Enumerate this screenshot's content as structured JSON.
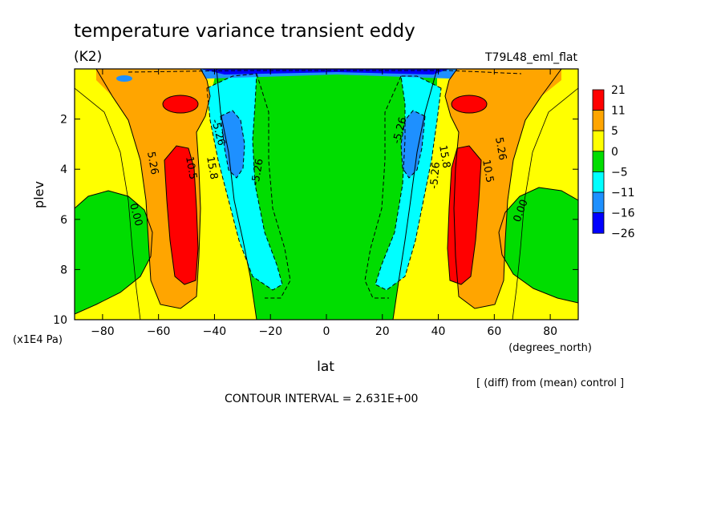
{
  "chart_data": {
    "type": "heatmap",
    "title": "temperature variance transient eddy",
    "units": "(K2)",
    "run_label": "T79L48_eml_flat",
    "xlabel": "lat",
    "x_units": "(degrees_north)",
    "ylabel": "plev",
    "y_units": "(x1E4 Pa)",
    "xlim": [
      -90,
      90
    ],
    "ylim": [
      10,
      0
    ],
    "x_ticks": [
      -80,
      -60,
      -40,
      -20,
      0,
      20,
      40,
      60,
      80
    ],
    "y_ticks": [
      2,
      4,
      6,
      8,
      10
    ],
    "note": "[ (diff) from (mean) control ]",
    "contour_interval": "CONTOUR INTERVAL = 2.631E+00",
    "colorbar": {
      "levels": [
        "21",
        "11",
        "5",
        "0",
        "-5",
        "-11",
        "-16",
        "-26"
      ],
      "colors": [
        "#ff0000",
        "#ffa500",
        "#ffff00",
        "#00dd00",
        "#00ffff",
        "#1e90ff",
        "#0000ff"
      ]
    },
    "contour_labels": [
      "5.26",
      "10.5",
      "5.26",
      "0.00",
      "-5.26",
      "-5.26",
      "5.26",
      "10.5",
      "5.26",
      "0.00",
      "-5.26",
      "-5.26",
      "15.8",
      "15.8"
    ],
    "field_summary": {
      "max_region_lat": [
        -50,
        50
      ],
      "max_region_plev": [
        3,
        8.5
      ],
      "min_region_lat": [
        -30,
        30
      ],
      "min_region_plev": [
        2,
        3.5
      ]
    }
  }
}
